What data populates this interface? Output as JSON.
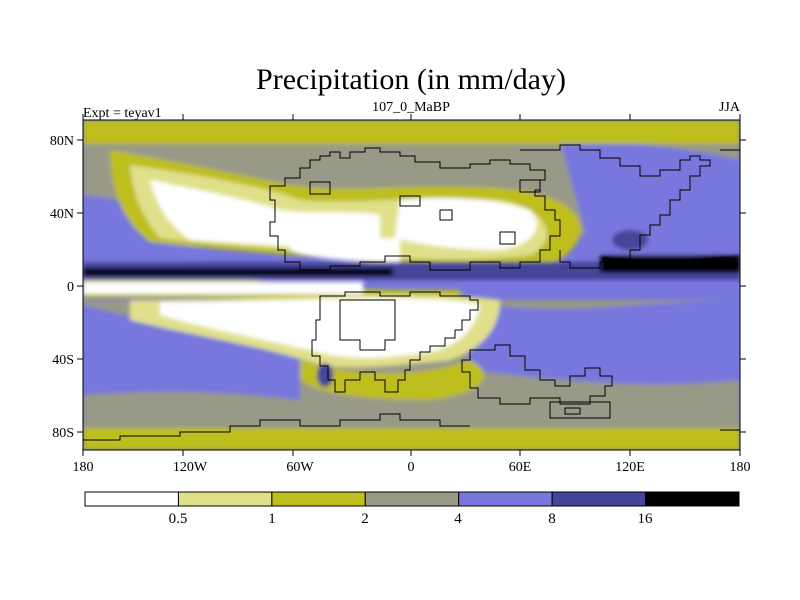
{
  "title": "Precipitation (in mm/day)",
  "left_subtitle": "Expt = teyav1",
  "center_subtitle": "107_0_MaBP",
  "right_subtitle": "JJA",
  "y_ticks": [
    "80N",
    "40N",
    "0",
    "40S",
    "80S"
  ],
  "x_ticks": [
    "180",
    "120W",
    "60W",
    "0",
    "60E",
    "120E",
    "180"
  ],
  "colorbar": {
    "labels": [
      "0.5",
      "1",
      "2",
      "4",
      "8",
      "16"
    ],
    "colors": [
      "#ffffff",
      "#e0e08a",
      "#bebe1e",
      "#999988",
      "#7777dd",
      "#444499",
      "#000000"
    ]
  },
  "colors": {
    "ocean_blue": "#7777dd",
    "land_outline": "#000000"
  }
}
